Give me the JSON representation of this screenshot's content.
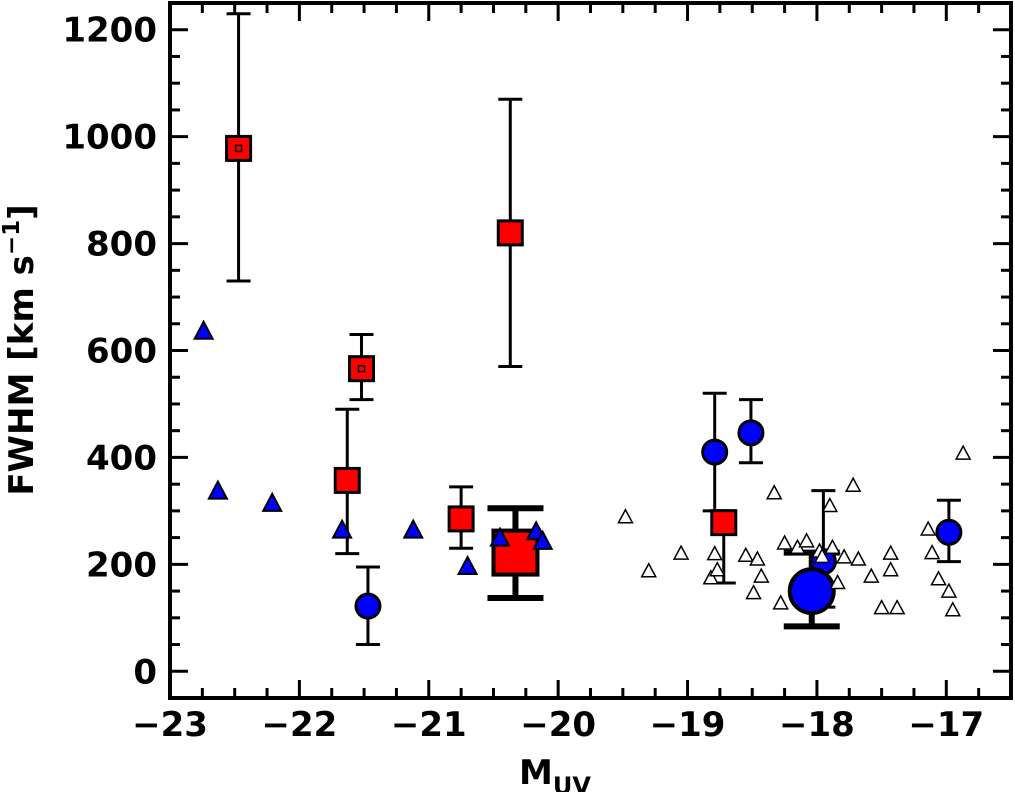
{
  "chart_data": {
    "type": "scatter",
    "title": "",
    "xlabel_main": "M",
    "xlabel_sub": "UV",
    "ylabel_main": "FWHM [km s",
    "ylabel_sup": "−1",
    "ylabel_close": "]",
    "xlim": [
      -23,
      -16.5
    ],
    "ylim": [
      -50,
      1250
    ],
    "x_ticks": [
      {
        "value": -23,
        "label": "−23"
      },
      {
        "value": -22,
        "label": "−22"
      },
      {
        "value": -21,
        "label": "−21"
      },
      {
        "value": -20,
        "label": "−20"
      },
      {
        "value": -19,
        "label": "−19"
      },
      {
        "value": -18,
        "label": "−18"
      },
      {
        "value": -17,
        "label": "−17"
      }
    ],
    "y_ticks": [
      {
        "value": 0,
        "label": "0"
      },
      {
        "value": 200,
        "label": "200"
      },
      {
        "value": 400,
        "label": "400"
      },
      {
        "value": 600,
        "label": "600"
      },
      {
        "value": 800,
        "label": "800"
      },
      {
        "value": 1000,
        "label": "1000"
      },
      {
        "value": 1200,
        "label": "1200"
      }
    ],
    "grid": false,
    "series": [
      {
        "marker": "square",
        "color": "#ff0000",
        "points": [
          {
            "x": -22.47,
            "y": 978,
            "yerr_lo": 248,
            "yerr_hi": 252,
            "dot": true
          },
          {
            "x": -21.52,
            "y": 566,
            "yerr_lo": 58,
            "yerr_hi": 64,
            "dot": true
          },
          {
            "x": -21.63,
            "y": 357,
            "yerr_lo": 137,
            "yerr_hi": 133
          },
          {
            "x": -20.75,
            "y": 285,
            "yerr_lo": 55,
            "yerr_hi": 60
          },
          {
            "x": -20.37,
            "y": 820,
            "yerr_lo": 250,
            "yerr_hi": 250
          },
          {
            "x": -18.72,
            "y": 278,
            "yerr_lo": 113,
            "yerr_hi": 22
          }
        ]
      },
      {
        "marker": "square-large",
        "color": "#ff0000",
        "points": [
          {
            "x": -20.33,
            "y": 222,
            "yerr_lo": 85,
            "yerr_hi": 83
          }
        ]
      },
      {
        "marker": "circle",
        "color": "#0000ff",
        "points": [
          {
            "x": -21.47,
            "y": 122,
            "yerr_lo": 72,
            "yerr_hi": 73
          },
          {
            "x": -18.79,
            "y": 410,
            "yerr_lo": 110,
            "yerr_hi": 110
          },
          {
            "x": -18.51,
            "y": 446,
            "yerr_lo": 56,
            "yerr_hi": 62
          },
          {
            "x": -17.95,
            "y": 205,
            "yerr_lo": 85,
            "yerr_hi": 133
          },
          {
            "x": -16.98,
            "y": 260,
            "yerr_lo": 55,
            "yerr_hi": 60
          }
        ]
      },
      {
        "marker": "circle-large",
        "color": "#0000ff",
        "points": [
          {
            "x": -18.04,
            "y": 150,
            "yerr_lo": 66,
            "yerr_hi": 72
          }
        ]
      },
      {
        "marker": "triangle",
        "color": "#0000ff",
        "points": [
          {
            "x": -22.74,
            "y": 637
          },
          {
            "x": -22.63,
            "y": 338
          },
          {
            "x": -22.21,
            "y": 315
          },
          {
            "x": -21.67,
            "y": 265
          },
          {
            "x": -21.12,
            "y": 265
          },
          {
            "x": -20.7,
            "y": 197
          },
          {
            "x": -20.45,
            "y": 250
          },
          {
            "x": -20.17,
            "y": 262
          },
          {
            "x": -20.12,
            "y": 244
          }
        ]
      },
      {
        "marker": "triangle-open",
        "color": "#ffffff",
        "points": [
          {
            "x": -19.48,
            "y": 289
          },
          {
            "x": -19.3,
            "y": 188
          },
          {
            "x": -19.05,
            "y": 221
          },
          {
            "x": -18.82,
            "y": 175
          },
          {
            "x": -18.79,
            "y": 220
          },
          {
            "x": -18.77,
            "y": 190
          },
          {
            "x": -18.55,
            "y": 217
          },
          {
            "x": -18.46,
            "y": 210
          },
          {
            "x": -18.43,
            "y": 178
          },
          {
            "x": -18.49,
            "y": 147
          },
          {
            "x": -18.33,
            "y": 334
          },
          {
            "x": -18.25,
            "y": 240
          },
          {
            "x": -18.28,
            "y": 128
          },
          {
            "x": -18.15,
            "y": 232
          },
          {
            "x": -18.08,
            "y": 244
          },
          {
            "x": -17.98,
            "y": 225
          },
          {
            "x": -17.96,
            "y": 215
          },
          {
            "x": -17.9,
            "y": 310
          },
          {
            "x": -17.88,
            "y": 232
          },
          {
            "x": -17.84,
            "y": 166
          },
          {
            "x": -17.79,
            "y": 214
          },
          {
            "x": -17.72,
            "y": 348
          },
          {
            "x": -17.68,
            "y": 210
          },
          {
            "x": -17.58,
            "y": 178
          },
          {
            "x": -17.5,
            "y": 119
          },
          {
            "x": -17.38,
            "y": 119
          },
          {
            "x": -17.43,
            "y": 190
          },
          {
            "x": -17.43,
            "y": 221
          },
          {
            "x": -17.14,
            "y": 266
          },
          {
            "x": -17.11,
            "y": 222
          },
          {
            "x": -17.06,
            "y": 173
          },
          {
            "x": -16.98,
            "y": 150
          },
          {
            "x": -16.95,
            "y": 115
          },
          {
            "x": -16.87,
            "y": 408
          }
        ]
      }
    ]
  }
}
